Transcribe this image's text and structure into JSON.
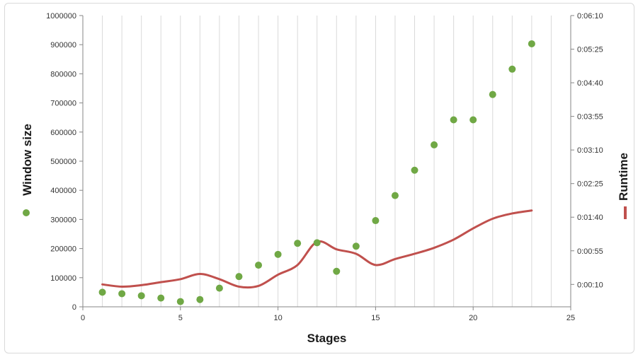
{
  "chart_data": {
    "type": "scatter",
    "xlabel": "Stages",
    "x_ticks": [
      "0",
      "5",
      "10",
      "15",
      "20",
      "25"
    ],
    "xlim": [
      0,
      25
    ],
    "ylabel_left": "Window size",
    "y_left_ticks": [
      "0",
      "100000",
      "200000",
      "300000",
      "400000",
      "500000",
      "600000",
      "700000",
      "800000",
      "900000",
      "1000000"
    ],
    "ylim_left": [
      0,
      1000000
    ],
    "ylabel_right": "Runtime",
    "y_right_ticks": [
      "0:00:10",
      "0:00:55",
      "0:01:40",
      "0:02:25",
      "0:03:10",
      "0:03:55",
      "0:04:40",
      "0:05:25",
      "0:06:10"
    ],
    "ylim_right_seconds": [
      -20,
      370
    ],
    "grid": "vertical",
    "legend": "embedded in axis titles",
    "series": [
      {
        "name": "Window size",
        "type": "scatter",
        "axis": "left",
        "color": "#70a845",
        "x": [
          1,
          2,
          3,
          4,
          5,
          6,
          7,
          8,
          9,
          10,
          11,
          12,
          13,
          14,
          15,
          16,
          17,
          18,
          19,
          20,
          21,
          22,
          23
        ],
        "y": [
          50000,
          45000,
          38000,
          30000,
          18000,
          25000,
          64000,
          104000,
          143000,
          180000,
          218000,
          220000,
          122000,
          208000,
          296000,
          382000,
          469000,
          556000,
          642000,
          642000,
          729000,
          816000,
          903000
        ]
      },
      {
        "name": "Runtime",
        "type": "line",
        "axis": "right",
        "color": "#c0504d",
        "x": [
          1,
          2,
          3,
          4,
          5,
          6,
          7,
          8,
          9,
          10,
          11,
          12,
          13,
          14,
          15,
          16,
          17,
          18,
          19,
          20,
          21,
          22,
          23
        ],
        "y_seconds": [
          10,
          7,
          9,
          13,
          17,
          24,
          17,
          7,
          8,
          23,
          36,
          67,
          57,
          51,
          36,
          44,
          51,
          59,
          70,
          85,
          98,
          105,
          109
        ]
      }
    ]
  }
}
